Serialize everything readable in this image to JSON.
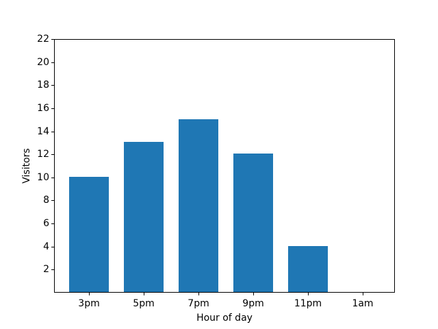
{
  "chart_data": {
    "type": "bar",
    "categories": [
      "3pm",
      "5pm",
      "7pm",
      "9pm",
      "11pm",
      "1am"
    ],
    "values": [
      10,
      13,
      15,
      12,
      4,
      0
    ],
    "xlabel": "Hour of day",
    "ylabel": "Visitors",
    "ylim": [
      0,
      22
    ],
    "yticks": [
      2,
      4,
      6,
      8,
      10,
      12,
      14,
      16,
      18,
      20,
      22
    ],
    "bar_color": "#1f77b4",
    "grid": false,
    "legend": false
  }
}
